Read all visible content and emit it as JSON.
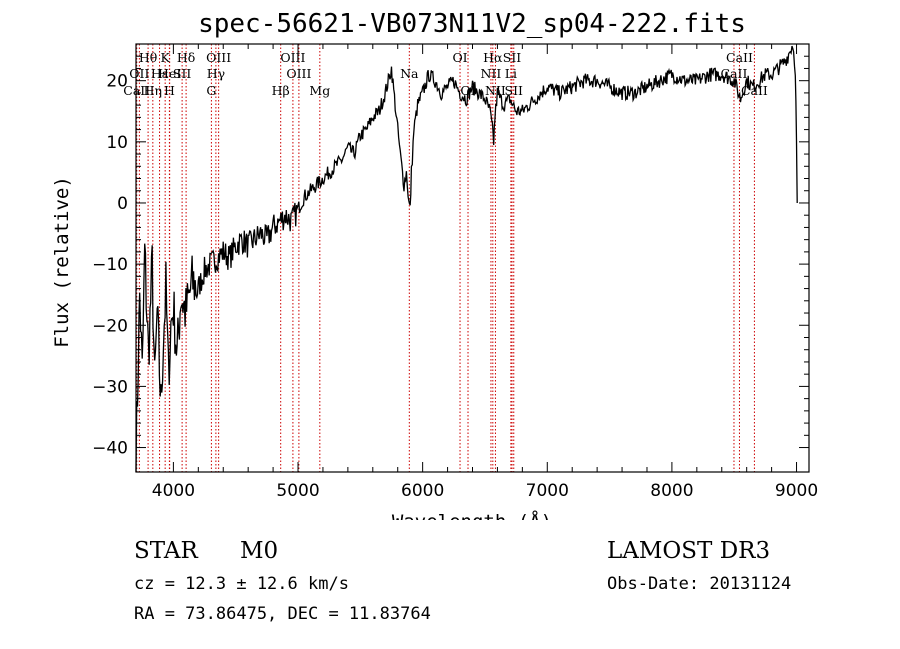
{
  "chart_data": {
    "type": "line",
    "title": "spec-56621-VB073N11V2_sp04-222.fits",
    "xlabel": "Wavelength (Å)",
    "ylabel": "Flux (relative)",
    "xlim": [
      3700,
      9100
    ],
    "ylim": [
      -44,
      26
    ],
    "xticks": [
      4000,
      5000,
      6000,
      7000,
      8000,
      9000
    ],
    "yticks": [
      -40,
      -30,
      -20,
      -10,
      0,
      10,
      20
    ],
    "series": [
      {
        "name": "flux",
        "x": [
          3700,
          3730,
          3750,
          3770,
          3800,
          3830,
          3850,
          3870,
          3900,
          3920,
          3940,
          3960,
          3980,
          4000,
          4030,
          4060,
          4100,
          4150,
          4200,
          4250,
          4300,
          4350,
          4400,
          4450,
          4500,
          4550,
          4600,
          4650,
          4700,
          4750,
          4800,
          4850,
          4900,
          4950,
          5000,
          5050,
          5100,
          5150,
          5200,
          5250,
          5300,
          5350,
          5400,
          5450,
          5500,
          5550,
          5600,
          5650,
          5700,
          5750,
          5780,
          5800,
          5820,
          5850,
          5870,
          5890,
          5900,
          5910,
          5930,
          5960,
          6000,
          6050,
          6100,
          6150,
          6200,
          6250,
          6300,
          6350,
          6400,
          6450,
          6500,
          6540,
          6560,
          6570,
          6580,
          6600,
          6650,
          6700,
          6750,
          6800,
          6850,
          6900,
          6950,
          7000,
          7100,
          7200,
          7300,
          7400,
          7500,
          7600,
          7700,
          7800,
          7900,
          8000,
          8100,
          8200,
          8300,
          8400,
          8500,
          8550,
          8600,
          8650,
          8700,
          8750,
          8800,
          8850,
          8900,
          8930,
          8950,
          8970,
          8990,
          9000,
          9005
        ],
        "y": [
          -42,
          -15,
          -28,
          -8,
          -25,
          -10,
          -30,
          -18,
          -33,
          -22,
          -14,
          -28,
          -20,
          -17,
          -25,
          -15,
          -18,
          -13,
          -14,
          -11,
          -10,
          -9,
          -8,
          -9,
          -7,
          -6,
          -7,
          -6,
          -5,
          -6,
          -4,
          -3,
          -2,
          -3,
          -1,
          1,
          2,
          3,
          4,
          5,
          6,
          7,
          9,
          8,
          11,
          12,
          14,
          15,
          18,
          22,
          16,
          12,
          8,
          3,
          5,
          0,
          -1,
          5,
          12,
          16,
          18,
          21,
          20,
          18,
          19,
          20,
          18,
          17,
          19,
          18,
          17,
          15,
          12,
          10,
          14,
          18,
          16,
          17,
          15,
          15,
          16,
          17,
          18,
          19,
          18,
          19,
          20,
          20,
          19,
          18,
          18,
          19,
          20,
          21,
          20,
          20,
          21,
          21,
          20,
          17,
          20,
          19,
          20,
          21,
          21,
          22,
          23,
          24,
          25,
          26,
          22,
          10,
          0
        ]
      }
    ],
    "line_markers": [
      {
        "label": "Hθ",
        "x": 3797,
        "row": 1
      },
      {
        "label": "OII",
        "x": 3727,
        "row": 2
      },
      {
        "label": "CaII",
        "x": 3706,
        "row": 3
      },
      {
        "label": "Hε",
        "x": 3889,
        "row": 2
      },
      {
        "label": "Hη",
        "x": 3835,
        "row": 3
      },
      {
        "label": "K",
        "x": 3934,
        "row": 1
      },
      {
        "label": "HeI",
        "x": 3970,
        "row": 2
      },
      {
        "label": "H",
        "x": 3968,
        "row": 3
      },
      {
        "label": "SII",
        "x": 4070,
        "row": 2
      },
      {
        "label": "Hδ",
        "x": 4102,
        "row": 1
      },
      {
        "label": "OIII",
        "x": 4363,
        "row": 1
      },
      {
        "label": "Hγ",
        "x": 4341,
        "row": 2
      },
      {
        "label": "G",
        "x": 4305,
        "row": 3
      },
      {
        "label": "OIII",
        "x": 4959,
        "row": 1
      },
      {
        "label": "OIII",
        "x": 5007,
        "row": 2
      },
      {
        "label": "Hβ",
        "x": 4861,
        "row": 3
      },
      {
        "label": "Mg",
        "x": 5175,
        "row": 3
      },
      {
        "label": "Na",
        "x": 5893,
        "row": 2
      },
      {
        "label": "OI",
        "x": 6300,
        "row": 1
      },
      {
        "label": "OI",
        "x": 6364,
        "row": 3
      },
      {
        "label": "Hα",
        "x": 6563,
        "row": 1
      },
      {
        "label": "NII",
        "x": 6548,
        "row": 2
      },
      {
        "label": "NII",
        "x": 6584,
        "row": 3
      },
      {
        "label": "SII",
        "x": 6717,
        "row": 1
      },
      {
        "label": "Li",
        "x": 6708,
        "row": 2
      },
      {
        "label": "SII",
        "x": 6731,
        "row": 3
      },
      {
        "label": "CaII",
        "x": 8542,
        "row": 1
      },
      {
        "label": "CaII",
        "x": 8498,
        "row": 2
      },
      {
        "label": "CaII",
        "x": 8662,
        "row": 3
      }
    ]
  },
  "info": {
    "object_class": "STAR",
    "subclass": "M0",
    "survey": "LAMOST DR3",
    "cz": "cz = 12.3 ± 12.6 km/s",
    "obs_date": "Obs-Date: 20131124",
    "coords": "RA =  73.86475, DEC =  11.83764"
  },
  "colors": {
    "axis": "#000000",
    "flux_line": "#000000",
    "marker_line": "#cc0000"
  }
}
